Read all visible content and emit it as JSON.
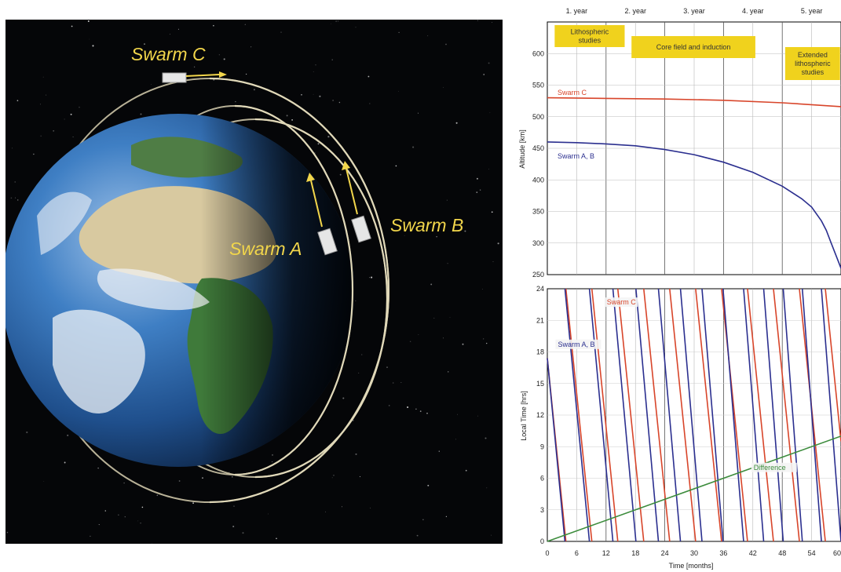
{
  "illustration": {
    "labels": {
      "swarm_c": "Swarm C",
      "swarm_a": "Swarm A",
      "swarm_b": "Swarm B"
    },
    "label_color": "#f2d64b",
    "background_color": "#050608"
  },
  "chart_data": [
    {
      "type": "line",
      "title": "",
      "xlabel": "",
      "ylabel": "Altitude [km]",
      "xlim": [
        0,
        60
      ],
      "ylim": [
        250,
        650
      ],
      "yticks": [
        250,
        300,
        350,
        400,
        450,
        500,
        550,
        600
      ],
      "grid": true,
      "year_labels": [
        "1. year",
        "2. year",
        "3. year",
        "4. year",
        "5. year"
      ],
      "phases": [
        {
          "label_lines": [
            "Lithospheric",
            "studies"
          ],
          "x_start": 0,
          "x_end": 10
        },
        {
          "label_lines": [
            "Core field and induction"
          ],
          "x_start": 10,
          "x_end": 48
        },
        {
          "label_lines": [
            "Extended",
            "lithospheric",
            "studies"
          ],
          "x_start": 48,
          "x_end": 60
        }
      ],
      "phase_color": "#f0d21d",
      "series": [
        {
          "name": "Swarm C",
          "color": "#d8452a",
          "x": [
            0,
            12,
            24,
            36,
            48,
            60
          ],
          "y": [
            530,
            529,
            528,
            526,
            522,
            516
          ]
        },
        {
          "name": "Swarm A, B",
          "color": "#2b2f8f",
          "x": [
            0,
            6,
            12,
            18,
            24,
            30,
            36,
            42,
            48,
            52,
            54,
            56,
            57,
            58,
            59,
            60
          ],
          "y": [
            460,
            459,
            457,
            454,
            448,
            440,
            428,
            412,
            390,
            370,
            357,
            335,
            320,
            300,
            280,
            260
          ]
        }
      ]
    },
    {
      "type": "line",
      "title": "",
      "xlabel": "Time [months]",
      "ylabel": "Local Time [hrs]",
      "xlim": [
        0,
        60
      ],
      "ylim": [
        0,
        24
      ],
      "xticks": [
        0,
        6,
        12,
        18,
        24,
        30,
        36,
        42,
        48,
        54,
        60
      ],
      "yticks": [
        0,
        3,
        6,
        9,
        12,
        15,
        18,
        21,
        24
      ],
      "grid": true,
      "series": [
        {
          "name": "Swarm C",
          "color": "#d8452a",
          "segments": [
            {
              "x": [
                0,
                3.8
              ],
              "y": [
                17.4,
                0
              ]
            },
            {
              "x": [
                3.8,
                9.1
              ],
              "y": [
                24,
                0
              ]
            },
            {
              "x": [
                9.1,
                14.4
              ],
              "y": [
                24,
                0
              ]
            },
            {
              "x": [
                14.4,
                19.7
              ],
              "y": [
                24,
                0
              ]
            },
            {
              "x": [
                19.7,
                25.0
              ],
              "y": [
                24,
                0
              ]
            },
            {
              "x": [
                25.0,
                30.3
              ],
              "y": [
                24,
                0
              ]
            },
            {
              "x": [
                30.3,
                35.6
              ],
              "y": [
                24,
                0
              ]
            },
            {
              "x": [
                35.6,
                40.9
              ],
              "y": [
                24,
                0
              ]
            },
            {
              "x": [
                40.9,
                46.2
              ],
              "y": [
                24,
                0
              ]
            },
            {
              "x": [
                46.2,
                51.5
              ],
              "y": [
                24,
                0
              ]
            },
            {
              "x": [
                51.5,
                56.8
              ],
              "y": [
                24,
                0
              ]
            },
            {
              "x": [
                56.8,
                60
              ],
              "y": [
                24,
                9.5
              ]
            }
          ]
        },
        {
          "name": "Swarm A, B",
          "color": "#2b2f8f",
          "segments": [
            {
              "x": [
                0,
                3.6
              ],
              "y": [
                17.4,
                0
              ]
            },
            {
              "x": [
                3.6,
                8.6
              ],
              "y": [
                24,
                0
              ]
            },
            {
              "x": [
                8.6,
                13.4
              ],
              "y": [
                24,
                0
              ]
            },
            {
              "x": [
                13.4,
                18.1
              ],
              "y": [
                24,
                0
              ]
            },
            {
              "x": [
                18.1,
                22.7
              ],
              "y": [
                24,
                0
              ]
            },
            {
              "x": [
                22.7,
                27.2
              ],
              "y": [
                24,
                0
              ]
            },
            {
              "x": [
                27.2,
                31.6
              ],
              "y": [
                24,
                0
              ]
            },
            {
              "x": [
                31.6,
                35.9
              ],
              "y": [
                24,
                0
              ]
            },
            {
              "x": [
                35.9,
                40.1
              ],
              "y": [
                24,
                0
              ]
            },
            {
              "x": [
                40.1,
                44.2
              ],
              "y": [
                24,
                0
              ]
            },
            {
              "x": [
                44.2,
                48.2
              ],
              "y": [
                24,
                0
              ]
            },
            {
              "x": [
                48.2,
                52.1
              ],
              "y": [
                24,
                0
              ]
            },
            {
              "x": [
                52.1,
                56.0
              ],
              "y": [
                24,
                0
              ]
            },
            {
              "x": [
                56.0,
                60
              ],
              "y": [
                24,
                0
              ]
            }
          ]
        },
        {
          "name": "Difference",
          "color": "#3c8c3c",
          "segments": [
            {
              "x": [
                0,
                60
              ],
              "y": [
                0,
                10
              ]
            }
          ]
        }
      ],
      "series_labels": [
        {
          "text": "Swarm C",
          "color": "#d8452a",
          "at": [
            12,
            22.5
          ]
        },
        {
          "text": "Swarm A, B",
          "color": "#2b2f8f",
          "at": [
            2,
            18.5
          ]
        },
        {
          "text": "Difference",
          "color": "#3c8c3c",
          "at": [
            42,
            6.8
          ]
        }
      ]
    }
  ]
}
